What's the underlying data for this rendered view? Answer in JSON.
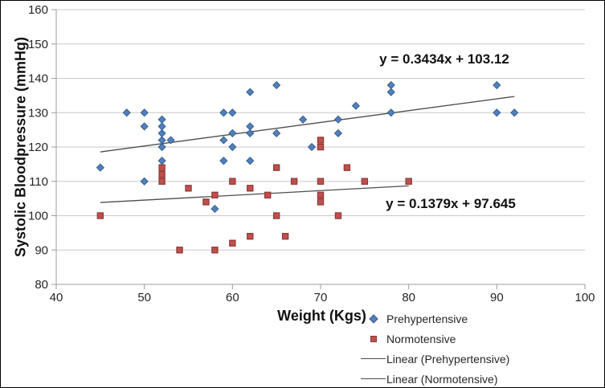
{
  "figure": {
    "background": "#ffffff",
    "border_color": "#000000",
    "gridline_color": "#c9c9c9",
    "axis_color": "#9c9c9c",
    "tick_label_color": "#262626"
  },
  "chart_data": {
    "type": "scatter",
    "title": "",
    "xlabel": "Weight (Kgs)",
    "ylabel": "Systolic Bloodpressure (mmHg)",
    "xlim": [
      40,
      100
    ],
    "ylim": [
      80,
      160
    ],
    "x_ticks": [
      40,
      50,
      60,
      70,
      80,
      90,
      100
    ],
    "y_ticks": [
      80,
      90,
      100,
      110,
      120,
      130,
      140,
      150,
      160
    ],
    "grid": "horizontal",
    "legend_position": "bottom-right",
    "series": [
      {
        "name": "Prehypertensive",
        "marker": "diamond",
        "color": "#4F81BD",
        "edge_color": "#385D8A",
        "points": [
          [
            45,
            114
          ],
          [
            48,
            130
          ],
          [
            50,
            110
          ],
          [
            50,
            126
          ],
          [
            50,
            130
          ],
          [
            52,
            116
          ],
          [
            52,
            120
          ],
          [
            52,
            122
          ],
          [
            52,
            124
          ],
          [
            52,
            126
          ],
          [
            52,
            128
          ],
          [
            53,
            122
          ],
          [
            58,
            102
          ],
          [
            59,
            116
          ],
          [
            59,
            122
          ],
          [
            59,
            130
          ],
          [
            60,
            120
          ],
          [
            60,
            124
          ],
          [
            60,
            130
          ],
          [
            62,
            116
          ],
          [
            62,
            124
          ],
          [
            62,
            126
          ],
          [
            62,
            136
          ],
          [
            65,
            124
          ],
          [
            65,
            138
          ],
          [
            68,
            128
          ],
          [
            69,
            120
          ],
          [
            72,
            124
          ],
          [
            72,
            128
          ],
          [
            74,
            132
          ],
          [
            78,
            130
          ],
          [
            78,
            136
          ],
          [
            78,
            138
          ],
          [
            90,
            130
          ],
          [
            90,
            138
          ],
          [
            92,
            130
          ]
        ]
      },
      {
        "name": "Normotensive",
        "marker": "square",
        "color": "#C0504D",
        "edge_color": "#8C3836",
        "points": [
          [
            45,
            100
          ],
          [
            52,
            110
          ],
          [
            52,
            112
          ],
          [
            52,
            114
          ],
          [
            54,
            90
          ],
          [
            55,
            108
          ],
          [
            57,
            104
          ],
          [
            58,
            90
          ],
          [
            58,
            106
          ],
          [
            60,
            92
          ],
          [
            60,
            110
          ],
          [
            62,
            94
          ],
          [
            62,
            108
          ],
          [
            64,
            106
          ],
          [
            65,
            100
          ],
          [
            65,
            114
          ],
          [
            66,
            94
          ],
          [
            67,
            110
          ],
          [
            70,
            104
          ],
          [
            70,
            106
          ],
          [
            70,
            110
          ],
          [
            70,
            120
          ],
          [
            70,
            122
          ],
          [
            72,
            100
          ],
          [
            73,
            114
          ],
          [
            75,
            110
          ],
          [
            80,
            110
          ]
        ]
      }
    ],
    "trendlines": [
      {
        "name": "Linear (Prehypertensive)",
        "equation": "y = 0.3434x + 103.12",
        "slope": 0.3434,
        "intercept": 103.12,
        "x_start": 45,
        "x_end": 92,
        "color": "#4d4d4d"
      },
      {
        "name": "Linear (Normotensive)",
        "equation": "y = 0.1379x + 97.645",
        "slope": 0.1379,
        "intercept": 97.645,
        "x_start": 45,
        "x_end": 80,
        "color": "#4d4d4d"
      }
    ]
  },
  "legend": {
    "items": [
      {
        "label": "Prehypertensive",
        "marker": "diamond",
        "color": "#4F81BD"
      },
      {
        "label": "Normotensive",
        "marker": "square",
        "color": "#C0504D"
      },
      {
        "label": "Linear (Prehypertensive)",
        "marker": "line",
        "color": "#4d4d4d"
      },
      {
        "label": "Linear (Normotensive)",
        "marker": "line",
        "color": "#4d4d4d"
      }
    ]
  }
}
